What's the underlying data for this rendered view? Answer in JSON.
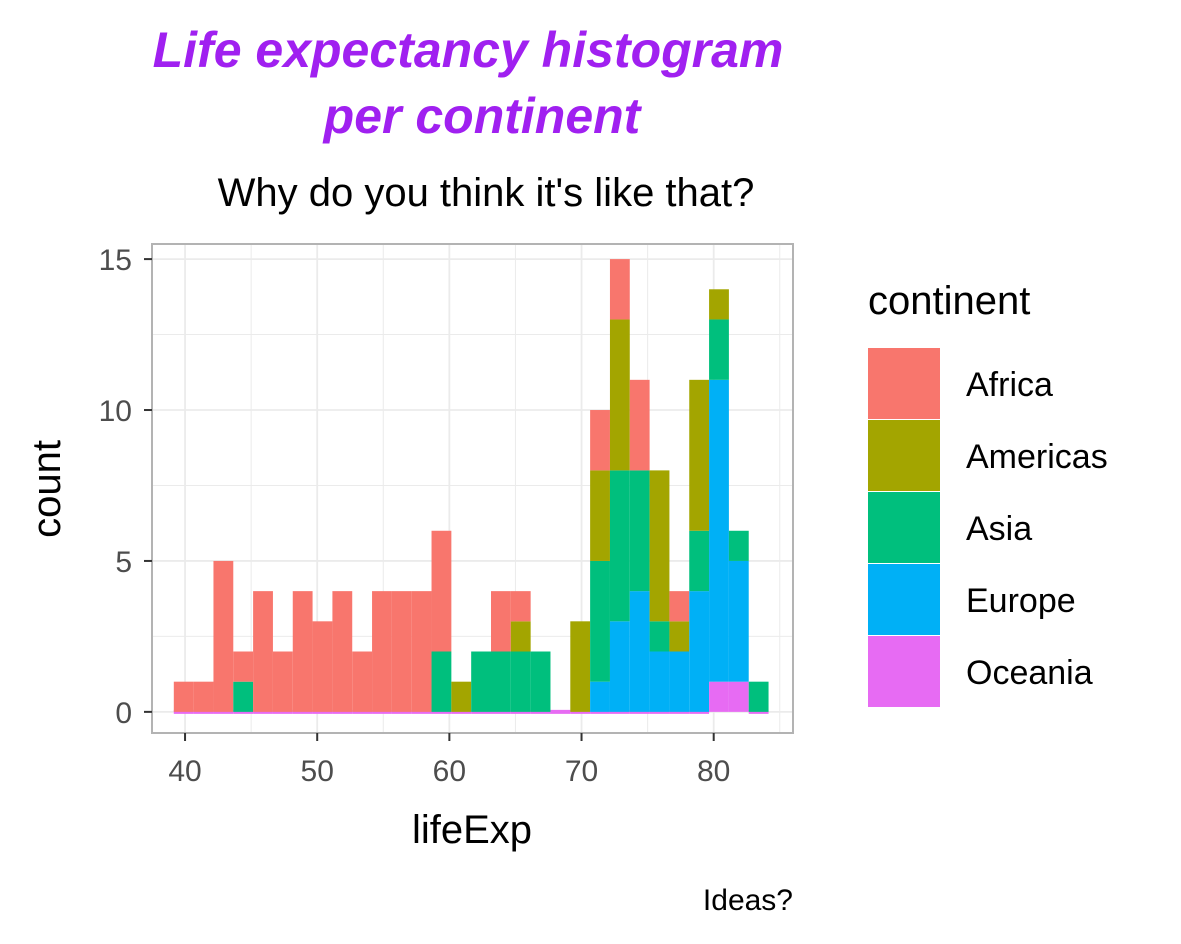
{
  "chart_data": {
    "type": "bar",
    "stacked": true,
    "title_lines": [
      "Life expectancy histogram",
      "per continent"
    ],
    "subtitle": "Why do you think it's like that?",
    "caption": "Ideas?",
    "xlabel": "lifeExp",
    "ylabel": "count",
    "xlim": [
      37.5,
      86
    ],
    "ylim": [
      -0.7,
      15.5
    ],
    "xticks": [
      40,
      50,
      60,
      70,
      80
    ],
    "yticks": [
      0,
      5,
      10,
      15
    ],
    "grid": true,
    "legend_title": "continent",
    "legend_position": "right",
    "bin_width": 1.5,
    "bin_centers": [
      39.9,
      41.4,
      42.9,
      44.4,
      45.9,
      47.4,
      48.9,
      50.4,
      51.9,
      53.4,
      54.9,
      56.4,
      57.9,
      59.4,
      60.9,
      62.4,
      63.9,
      65.4,
      66.9,
      68.4,
      69.9,
      71.4,
      72.9,
      74.4,
      75.9,
      77.4,
      78.9,
      80.4,
      81.9,
      83.4
    ],
    "series": [
      {
        "name": "Oceania",
        "color": "#E76BF3",
        "values": [
          0,
          0,
          0,
          0,
          0,
          0,
          0,
          0,
          0,
          0,
          0,
          0,
          0,
          0,
          0,
          0,
          0,
          0,
          0,
          0,
          0,
          0,
          0,
          0,
          0,
          0,
          0,
          1,
          1,
          0
        ]
      },
      {
        "name": "Europe",
        "color": "#00B0F6",
        "values": [
          0,
          0,
          0,
          0,
          0,
          0,
          0,
          0,
          0,
          0,
          0,
          0,
          0,
          0,
          0,
          0,
          0,
          0,
          0,
          0,
          0,
          1,
          3,
          4,
          2,
          2,
          4,
          10,
          4,
          0
        ]
      },
      {
        "name": "Asia",
        "color": "#00BF7D",
        "values": [
          0,
          0,
          0,
          1,
          0,
          0,
          0,
          0,
          0,
          0,
          0,
          0,
          0,
          2,
          0,
          2,
          2,
          2,
          2,
          0,
          0,
          4,
          5,
          4,
          1,
          0,
          2,
          2,
          1,
          1
        ]
      },
      {
        "name": "Americas",
        "color": "#A3A500",
        "values": [
          0,
          0,
          0,
          0,
          0,
          0,
          0,
          0,
          0,
          0,
          0,
          0,
          0,
          0,
          1,
          0,
          0,
          1,
          0,
          0,
          3,
          3,
          5,
          0,
          5,
          1,
          5,
          1,
          0,
          0
        ]
      },
      {
        "name": "Africa",
        "color": "#F8766D",
        "values": [
          1,
          1,
          5,
          1,
          4,
          2,
          4,
          3,
          4,
          2,
          4,
          4,
          4,
          4,
          0,
          0,
          2,
          1,
          0,
          0,
          0,
          2,
          2,
          3,
          0,
          1,
          0,
          0,
          0,
          0
        ]
      }
    ],
    "legend_order": [
      "Africa",
      "Americas",
      "Asia",
      "Europe",
      "Oceania"
    ]
  },
  "colors": {
    "title": "#A020F0",
    "grid": "#EBEBEB",
    "panel_border": "#B3B3B3",
    "tick_text": "#4D4D4D"
  }
}
